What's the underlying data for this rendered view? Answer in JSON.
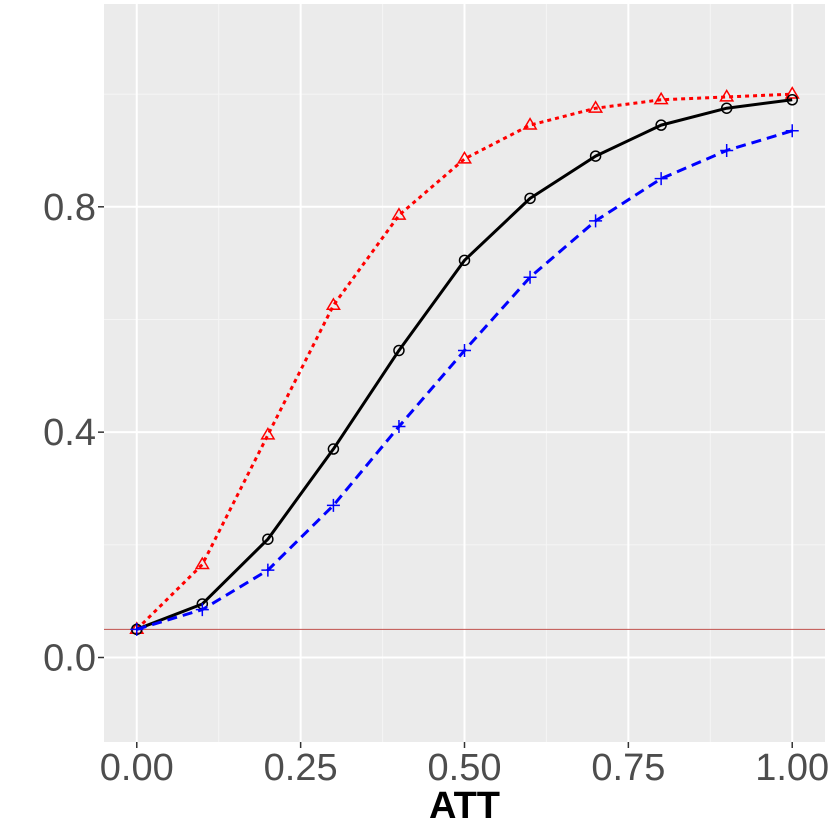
{
  "chart_data": {
    "type": "line",
    "title": "",
    "xlabel": "ATT",
    "ylabel": "",
    "xlim": [
      -0.05,
      1.05
    ],
    "ylim": [
      -0.15,
      1.16
    ],
    "x_ticks": [
      0.0,
      0.25,
      0.5,
      0.75,
      1.0
    ],
    "x_tick_labels": [
      "0.00",
      "0.25",
      "0.50",
      "0.75",
      "1.00"
    ],
    "y_ticks": [
      0.0,
      0.4,
      0.8
    ],
    "y_tick_labels": [
      "0.0",
      "0.4",
      "0.8"
    ],
    "grid": true,
    "reference_line": {
      "y": 0.05,
      "color": "#c0504d"
    },
    "x": [
      0.0,
      0.1,
      0.2,
      0.3,
      0.4,
      0.5,
      0.6,
      0.7,
      0.8,
      0.9,
      1.0
    ],
    "series": [
      {
        "marker": "triangle",
        "color": "#ff0000",
        "dash": "dotted",
        "values": [
          0.05,
          0.165,
          0.395,
          0.625,
          0.785,
          0.885,
          0.945,
          0.975,
          0.99,
          0.995,
          1.0
        ]
      },
      {
        "marker": "circle",
        "color": "#000000",
        "dash": "solid",
        "values": [
          0.05,
          0.095,
          0.21,
          0.37,
          0.545,
          0.705,
          0.815,
          0.89,
          0.945,
          0.975,
          0.99
        ]
      },
      {
        "marker": "plus",
        "color": "#0000ff",
        "dash": "dashed",
        "values": [
          0.05,
          0.085,
          0.155,
          0.27,
          0.41,
          0.545,
          0.675,
          0.775,
          0.85,
          0.9,
          0.935
        ]
      }
    ]
  },
  "colors": {
    "panel": "#ebebeb",
    "grid_major": "#ffffff",
    "grid_minor": "#f5f5f5",
    "tick": "#333333"
  }
}
